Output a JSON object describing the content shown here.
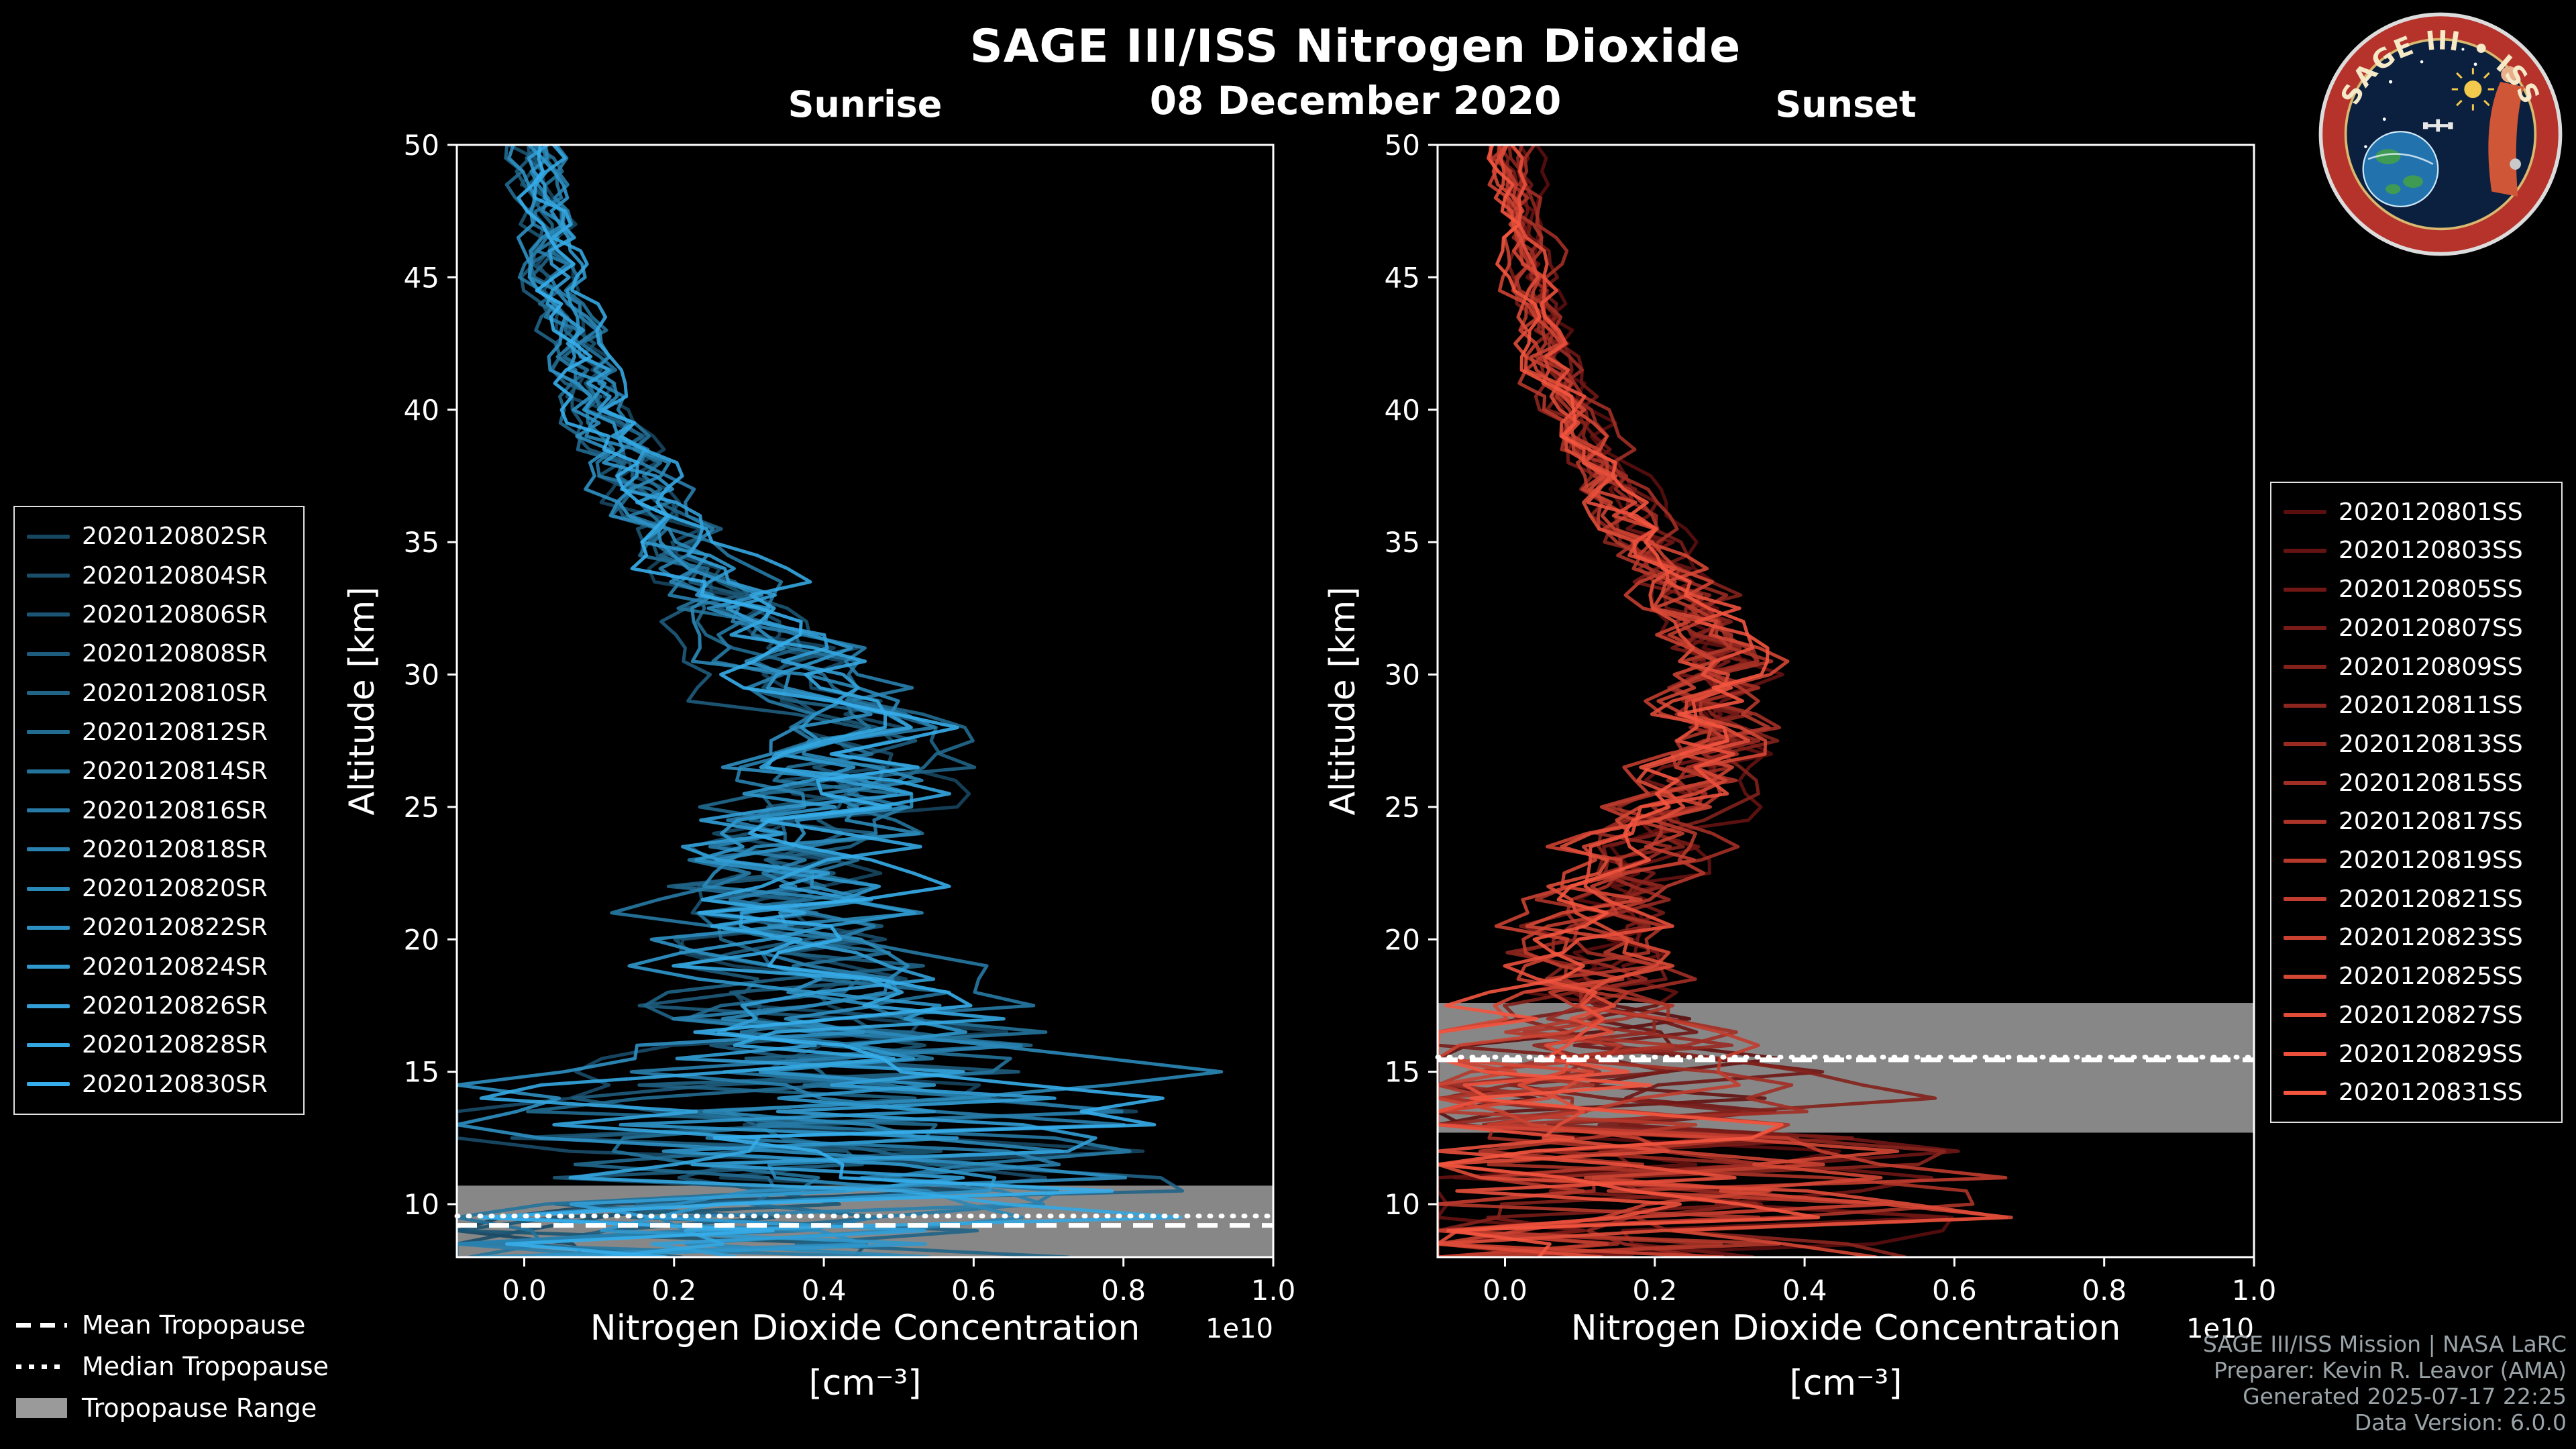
{
  "header": {
    "title": "SAGE III/ISS Nitrogen Dioxide",
    "date": "08 December 2020"
  },
  "tropopause_legend": {
    "mean": "Mean Tropopause",
    "median": "Median Tropopause",
    "range": "Tropopause Range"
  },
  "credits": {
    "line1": "SAGE III/ISS Mission | NASA LaRC",
    "line2": "Preparer: Kevin R. Leavor (AMA)",
    "line3": "Generated 2025-07-17 22:25",
    "line4": "Data Version: 6.0.0"
  },
  "logo": {
    "title": "SAGE III • ISS"
  },
  "chart_data": [
    {
      "id": "sunrise",
      "type": "line",
      "title": "Sunrise",
      "xlabel": "Nitrogen Dioxide Concentration",
      "xunits": "[cm⁻³]",
      "ylabel": "Altitude [km]",
      "offset_text": "1e10",
      "xlim": [
        -0.09,
        1.0
      ],
      "ylim": [
        8,
        50
      ],
      "xticks": [
        0.0,
        0.2,
        0.4,
        0.6,
        0.8,
        1.0
      ],
      "yticks": [
        10,
        15,
        20,
        25,
        30,
        35,
        40,
        45,
        50
      ],
      "grid": false,
      "legend_position": "left-outside",
      "color_start": "#17465f",
      "color_end": "#36aeeb",
      "series": [
        "2020120802SR",
        "2020120804SR",
        "2020120806SR",
        "2020120808SR",
        "2020120810SR",
        "2020120812SR",
        "2020120814SR",
        "2020120816SR",
        "2020120818SR",
        "2020120820SR",
        "2020120822SR",
        "2020120824SR",
        "2020120826SR",
        "2020120828SR",
        "2020120830SR"
      ],
      "base_profile": {
        "alt": [
          8,
          10,
          12,
          14,
          16,
          18,
          20,
          22,
          24,
          26,
          28,
          30,
          32,
          34,
          36,
          38,
          40,
          42,
          45,
          48,
          50
        ],
        "conc_1e10": [
          0.25,
          0.3,
          0.35,
          0.4,
          0.4,
          0.38,
          0.33,
          0.33,
          0.38,
          0.43,
          0.44,
          0.38,
          0.3,
          0.24,
          0.18,
          0.14,
          0.1,
          0.07,
          0.04,
          0.02,
          0.01
        ]
      },
      "noise_profile": {
        "alt": [
          8,
          11,
          13,
          15,
          17,
          20,
          25,
          30,
          35,
          40,
          50
        ],
        "amp_1e10": [
          0.4,
          0.4,
          0.35,
          0.3,
          0.2,
          0.15,
          0.12,
          0.08,
          0.05,
          0.03,
          0.02
        ]
      },
      "tropopause": {
        "mean_km": 9.2,
        "median_km": 9.55,
        "range_km": [
          8.0,
          10.7
        ]
      }
    },
    {
      "id": "sunset",
      "type": "line",
      "title": "Sunset",
      "xlabel": "Nitrogen Dioxide Concentration",
      "xunits": "[cm⁻³]",
      "ylabel": "Altitude [km]",
      "offset_text": "1e10",
      "xlim": [
        -0.09,
        1.0
      ],
      "ylim": [
        8,
        50
      ],
      "xticks": [
        0.0,
        0.2,
        0.4,
        0.6,
        0.8,
        1.0
      ],
      "yticks": [
        10,
        15,
        20,
        25,
        30,
        35,
        40,
        45,
        50
      ],
      "grid": false,
      "legend_position": "right-outside",
      "color_start": "#5a0e0e",
      "color_end": "#f4553f",
      "series": [
        "2020120801SS",
        "2020120803SS",
        "2020120805SS",
        "2020120807SS",
        "2020120809SS",
        "2020120811SS",
        "2020120813SS",
        "2020120815SS",
        "2020120817SS",
        "2020120819SS",
        "2020120821SS",
        "2020120823SS",
        "2020120825SS",
        "2020120827SS",
        "2020120829SS",
        "2020120831SS"
      ],
      "base_profile": {
        "alt": [
          8,
          10,
          12,
          14,
          16,
          18,
          20,
          22,
          24,
          26,
          28,
          30,
          32,
          34,
          36,
          38,
          40,
          42,
          45,
          48,
          50
        ],
        "conc_1e10": [
          0.15,
          0.15,
          0.15,
          0.12,
          0.1,
          0.1,
          0.13,
          0.16,
          0.2,
          0.26,
          0.3,
          0.3,
          0.27,
          0.22,
          0.17,
          0.13,
          0.09,
          0.06,
          0.04,
          0.02,
          0.01
        ]
      },
      "noise_profile": {
        "alt": [
          8,
          11,
          13,
          15,
          17,
          20,
          25,
          30,
          35,
          40,
          50
        ],
        "amp_1e10": [
          0.35,
          0.35,
          0.3,
          0.2,
          0.12,
          0.08,
          0.07,
          0.06,
          0.04,
          0.025,
          0.015
        ]
      },
      "tropopause": {
        "mean_km": 15.45,
        "median_km": 15.55,
        "range_km": [
          12.7,
          17.6
        ]
      }
    }
  ]
}
